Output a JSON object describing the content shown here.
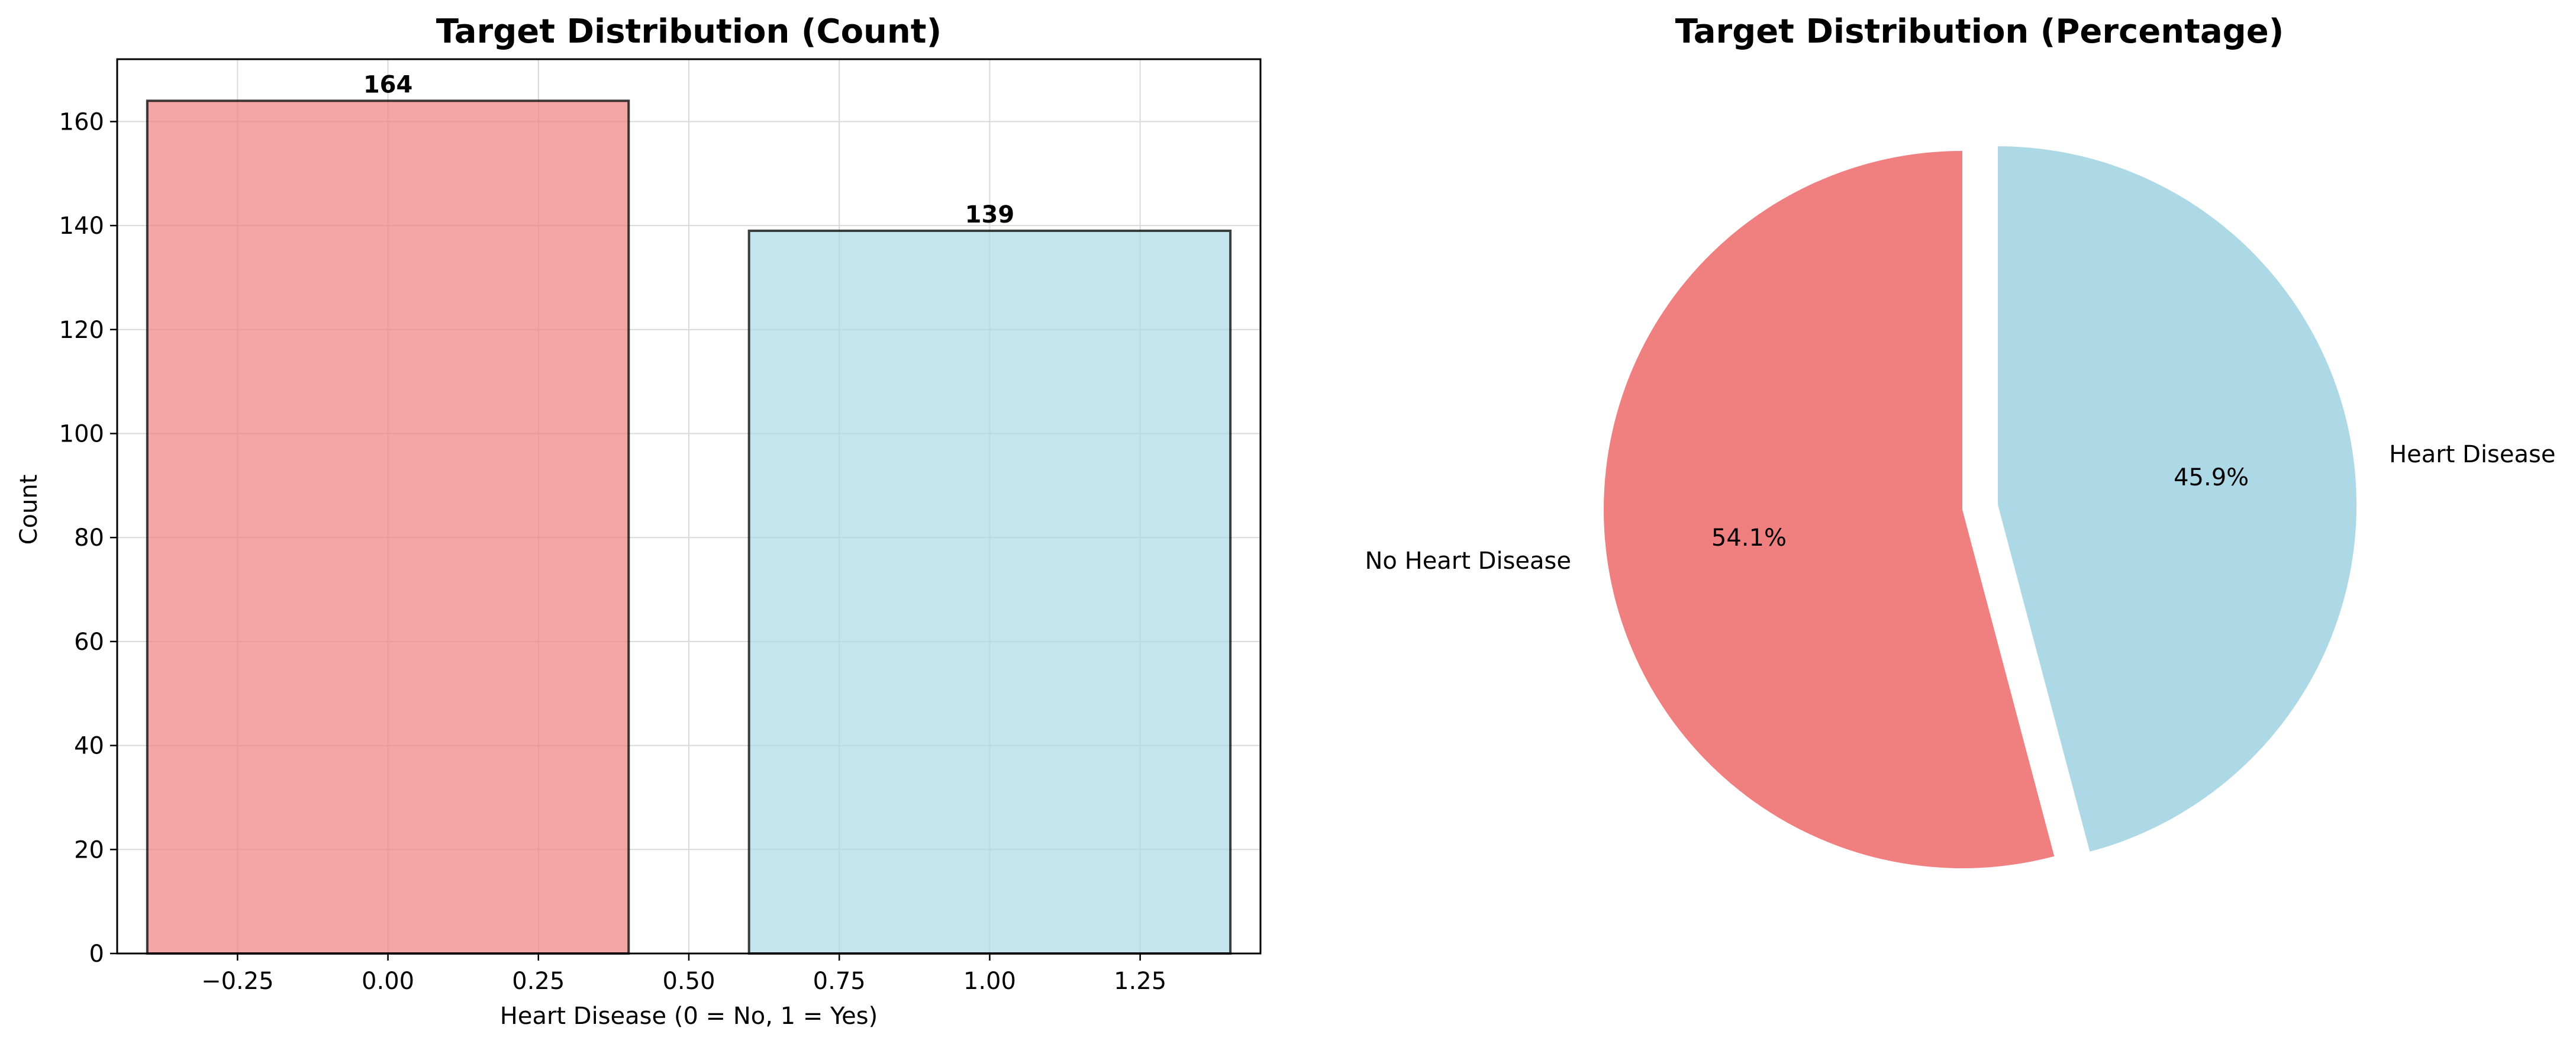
{
  "chart_data": [
    {
      "type": "bar",
      "title": "Target Distribution (Count)",
      "xlabel": "Heart Disease (0 = No, 1 = Yes)",
      "ylabel": "Count",
      "x": [
        0,
        1
      ],
      "values": [
        164,
        139
      ],
      "bar_width": 0.8,
      "data_labels": [
        "164",
        "139"
      ],
      "colors": [
        "#F08080",
        "#ADD8E6"
      ],
      "bar_alpha": 0.7,
      "edge_color": "#000000",
      "xlim": [
        -0.45,
        1.45
      ],
      "ylim": [
        0,
        172
      ],
      "xticks": [
        -0.25,
        0.0,
        0.25,
        0.5,
        0.75,
        1.0,
        1.25
      ],
      "xtick_labels": [
        "−0.25",
        "0.00",
        "0.25",
        "0.50",
        "0.75",
        "1.00",
        "1.25"
      ],
      "yticks": [
        0,
        20,
        40,
        60,
        80,
        100,
        120,
        140,
        160
      ],
      "ytick_labels": [
        "0",
        "20",
        "40",
        "60",
        "80",
        "100",
        "120",
        "140",
        "160"
      ],
      "grid": true
    },
    {
      "type": "pie",
      "title": "Target Distribution (Percentage)",
      "labels": [
        "No Heart Disease",
        "Heart Disease"
      ],
      "values": [
        164,
        139
      ],
      "percent_labels": [
        "54.1%",
        "45.9%"
      ],
      "colors": [
        "#F08080",
        "#ADD8E6"
      ],
      "start_angle_deg": 90,
      "explode": [
        0,
        0.1
      ]
    }
  ]
}
